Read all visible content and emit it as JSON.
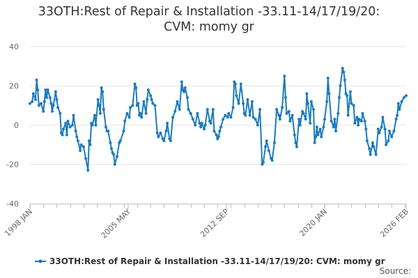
{
  "title_lines": [
    "33OTH:Rest of Repair & Installation -33.11-14/17/19/20:",
    "CVM: momy gr"
  ],
  "source_label": "Source:",
  "chart_data": {
    "type": "line",
    "title": "33OTH:Rest of Repair & Installation -33.11-14/17/19/20: CVM: momy gr",
    "xlabel": "",
    "ylabel": "",
    "ylim": [
      -40,
      40
    ],
    "yticks": [
      40,
      20,
      0,
      -20,
      -40
    ],
    "x_start": "1998-01",
    "x_end": "2026-02",
    "x_ticks": [
      {
        "date": "1998-01",
        "label": "1998 JAN"
      },
      {
        "date": "2005-05",
        "label": "2005 MAY"
      },
      {
        "date": "2012-09",
        "label": "2012 SEP"
      },
      {
        "date": "2020-01",
        "label": "2020 JAN"
      },
      {
        "date": "2026-02",
        "label": "2026 FEB"
      }
    ],
    "grid": true,
    "legend_position": "bottom",
    "series": [
      {
        "name": "33OTH:Rest of Repair & Installation -33.11-14/17/19/20: CVM: momy gr",
        "color": "#1a7bbd",
        "points": [
          [
            "1998-01",
            11
          ],
          [
            "1998-03",
            12
          ],
          [
            "1998-04",
            16
          ],
          [
            "1998-06",
            13
          ],
          [
            "1998-07",
            23
          ],
          [
            "1998-08",
            18
          ],
          [
            "1998-09",
            10
          ],
          [
            "1998-11",
            11
          ],
          [
            "1999-01",
            7
          ],
          [
            "1999-02",
            12
          ],
          [
            "1999-03",
            18
          ],
          [
            "1999-04",
            14
          ],
          [
            "1999-05",
            18
          ],
          [
            "1999-07",
            14
          ],
          [
            "1999-08",
            11
          ],
          [
            "1999-09",
            7
          ],
          [
            "1999-10",
            10
          ],
          [
            "1999-12",
            17
          ],
          [
            "2000-01",
            13
          ],
          [
            "2000-02",
            9
          ],
          [
            "2000-04",
            6
          ],
          [
            "2000-05",
            -4
          ],
          [
            "2000-06",
            -5
          ],
          [
            "2000-07",
            -2
          ],
          [
            "2000-09",
            1
          ],
          [
            "2000-10",
            -5
          ],
          [
            "2000-11",
            2
          ],
          [
            "2001-01",
            -1
          ],
          [
            "2001-03",
            0
          ],
          [
            "2001-04",
            5
          ],
          [
            "2001-06",
            -3
          ],
          [
            "2001-07",
            -6
          ],
          [
            "2001-08",
            -8
          ],
          [
            "2001-10",
            -13
          ],
          [
            "2001-11",
            -10
          ],
          [
            "2002-01",
            -11
          ],
          [
            "2002-03",
            -17
          ],
          [
            "2002-05",
            -23
          ],
          [
            "2002-06",
            -8
          ],
          [
            "2002-07",
            -10
          ],
          [
            "2002-08",
            1
          ],
          [
            "2002-09",
            0
          ],
          [
            "2002-11",
            5
          ],
          [
            "2002-12",
            0
          ],
          [
            "2003-02",
            13
          ],
          [
            "2003-03",
            10
          ],
          [
            "2003-04",
            6
          ],
          [
            "2003-05",
            19
          ],
          [
            "2003-06",
            17
          ],
          [
            "2003-07",
            8
          ],
          [
            "2003-09",
            -1
          ],
          [
            "2003-10",
            -3
          ],
          [
            "2003-11",
            -3
          ],
          [
            "2004-01",
            -9
          ],
          [
            "2004-02",
            -12
          ],
          [
            "2004-03",
            -14
          ],
          [
            "2004-04",
            -15
          ],
          [
            "2004-05",
            -20
          ],
          [
            "2004-07",
            -16
          ],
          [
            "2004-09",
            -9
          ],
          [
            "2004-10",
            -8
          ],
          [
            "2005-01",
            -3
          ],
          [
            "2005-02",
            2
          ],
          [
            "2005-04",
            6
          ],
          [
            "2005-06",
            4
          ],
          [
            "2005-07",
            9
          ],
          [
            "2005-09",
            10
          ],
          [
            "2005-11",
            21
          ],
          [
            "2005-12",
            19
          ],
          [
            "2006-01",
            10
          ],
          [
            "2006-02",
            11
          ],
          [
            "2006-03",
            5
          ],
          [
            "2006-04",
            6
          ],
          [
            "2006-05",
            4
          ],
          [
            "2006-07",
            12
          ],
          [
            "2006-09",
            6
          ],
          [
            "2006-10",
            13
          ],
          [
            "2006-11",
            18
          ],
          [
            "2007-01",
            15
          ],
          [
            "2007-02",
            13
          ],
          [
            "2007-03",
            11
          ],
          [
            "2007-05",
            10
          ],
          [
            "2007-07",
            -4
          ],
          [
            "2007-08",
            -6
          ],
          [
            "2007-10",
            -4
          ],
          [
            "2007-12",
            -7
          ],
          [
            "2008-01",
            -8
          ],
          [
            "2008-03",
            -3
          ],
          [
            "2008-04",
            1
          ],
          [
            "2008-06",
            -7
          ],
          [
            "2008-07",
            -8
          ],
          [
            "2008-09",
            4
          ],
          [
            "2008-11",
            7
          ],
          [
            "2009-01",
            12
          ],
          [
            "2009-03",
            8
          ],
          [
            "2009-05",
            22
          ],
          [
            "2009-06",
            18
          ],
          [
            "2009-07",
            17
          ],
          [
            "2009-08",
            19
          ],
          [
            "2009-10",
            14
          ],
          [
            "2009-11",
            8
          ],
          [
            "2010-01",
            6
          ],
          [
            "2010-03",
            3
          ],
          [
            "2010-05",
            0
          ],
          [
            "2010-07",
            6
          ],
          [
            "2010-09",
            1
          ],
          [
            "2010-10",
            -1
          ],
          [
            "2010-11",
            1
          ],
          [
            "2011-01",
            -2
          ],
          [
            "2011-02",
            0
          ],
          [
            "2011-04",
            8
          ],
          [
            "2011-06",
            2
          ],
          [
            "2011-07",
            1
          ],
          [
            "2011-09",
            8
          ],
          [
            "2011-10",
            -3
          ],
          [
            "2011-12",
            -5
          ],
          [
            "2012-01",
            -7
          ],
          [
            "2012-02",
            -6
          ],
          [
            "2012-03",
            -3
          ],
          [
            "2012-04",
            -1
          ],
          [
            "2012-06",
            3
          ],
          [
            "2012-08",
            5
          ],
          [
            "2012-10",
            4
          ],
          [
            "2012-11",
            6
          ],
          [
            "2013-01",
            4
          ],
          [
            "2013-03",
            9
          ],
          [
            "2013-04",
            22
          ],
          [
            "2013-05",
            21
          ],
          [
            "2013-06",
            15
          ],
          [
            "2013-08",
            11
          ],
          [
            "2013-10",
            21
          ],
          [
            "2013-12",
            11
          ],
          [
            "2014-01",
            6
          ],
          [
            "2014-02",
            5
          ],
          [
            "2014-04",
            13
          ],
          [
            "2014-06",
            5
          ],
          [
            "2014-08",
            12
          ],
          [
            "2014-09",
            4
          ],
          [
            "2014-11",
            3
          ],
          [
            "2015-01",
            0
          ],
          [
            "2015-03",
            8
          ],
          [
            "2015-05",
            -20
          ],
          [
            "2015-06",
            -19
          ],
          [
            "2015-08",
            -11
          ],
          [
            "2015-09",
            -8
          ],
          [
            "2015-11",
            -13
          ],
          [
            "2016-01",
            -17
          ],
          [
            "2016-02",
            -18
          ],
          [
            "2016-04",
            -9
          ],
          [
            "2016-06",
            8
          ],
          [
            "2016-08",
            5
          ],
          [
            "2016-09",
            3
          ],
          [
            "2016-11",
            9
          ],
          [
            "2017-01",
            25
          ],
          [
            "2017-02",
            14
          ],
          [
            "2017-03",
            6
          ],
          [
            "2017-05",
            7
          ],
          [
            "2017-06",
            2
          ],
          [
            "2017-08",
            5
          ],
          [
            "2017-10",
            -5
          ],
          [
            "2017-11",
            -9
          ],
          [
            "2017-12",
            -11
          ],
          [
            "2018-02",
            3
          ],
          [
            "2018-03",
            0
          ],
          [
            "2018-05",
            7
          ],
          [
            "2018-06",
            6
          ],
          [
            "2018-08",
            3
          ],
          [
            "2018-09",
            16
          ],
          [
            "2018-10",
            11
          ],
          [
            "2018-12",
            1
          ],
          [
            "2019-01",
            12
          ],
          [
            "2019-03",
            8
          ],
          [
            "2019-04",
            -9
          ],
          [
            "2019-05",
            -6
          ],
          [
            "2019-06",
            -1
          ],
          [
            "2019-07",
            -5
          ],
          [
            "2019-09",
            -2
          ],
          [
            "2019-10",
            -6
          ],
          [
            "2019-12",
            -1
          ],
          [
            "2020-01",
            3
          ],
          [
            "2020-03",
            12
          ],
          [
            "2020-04",
            24
          ],
          [
            "2020-05",
            16
          ],
          [
            "2020-07",
            2
          ],
          [
            "2020-09",
            -1
          ],
          [
            "2020-10",
            3
          ],
          [
            "2020-11",
            -3
          ],
          [
            "2021-01",
            6
          ],
          [
            "2021-02",
            14
          ],
          [
            "2021-03",
            20
          ],
          [
            "2021-05",
            29
          ],
          [
            "2021-06",
            27
          ],
          [
            "2021-07",
            23
          ],
          [
            "2021-08",
            16
          ],
          [
            "2021-09",
            15
          ],
          [
            "2021-10",
            5
          ],
          [
            "2021-12",
            17
          ],
          [
            "2022-01",
            11
          ],
          [
            "2022-03",
            10
          ],
          [
            "2022-04",
            1
          ],
          [
            "2022-06",
            4
          ],
          [
            "2022-07",
            0
          ],
          [
            "2022-08",
            3
          ],
          [
            "2022-10",
            2
          ],
          [
            "2022-11",
            6
          ],
          [
            "2023-01",
            2
          ],
          [
            "2023-02",
            -2
          ],
          [
            "2023-03",
            -8
          ],
          [
            "2023-05",
            -12
          ],
          [
            "2023-06",
            -15
          ],
          [
            "2023-08",
            -9
          ],
          [
            "2023-09",
            -11
          ],
          [
            "2023-11",
            -15
          ],
          [
            "2024-01",
            -2
          ],
          [
            "2024-02",
            -4
          ],
          [
            "2024-04",
            -1
          ],
          [
            "2024-05",
            4
          ],
          [
            "2024-07",
            -2
          ],
          [
            "2024-08",
            -10
          ],
          [
            "2024-10",
            -8
          ],
          [
            "2024-11",
            -3
          ],
          [
            "2025-01",
            -6
          ],
          [
            "2025-03",
            -3
          ],
          [
            "2025-05",
            3
          ],
          [
            "2025-06",
            5
          ],
          [
            "2025-07",
            11
          ],
          [
            "2025-08",
            8
          ],
          [
            "2025-10",
            12
          ],
          [
            "2025-12",
            14
          ],
          [
            "2026-02",
            15
          ]
        ]
      }
    ]
  }
}
